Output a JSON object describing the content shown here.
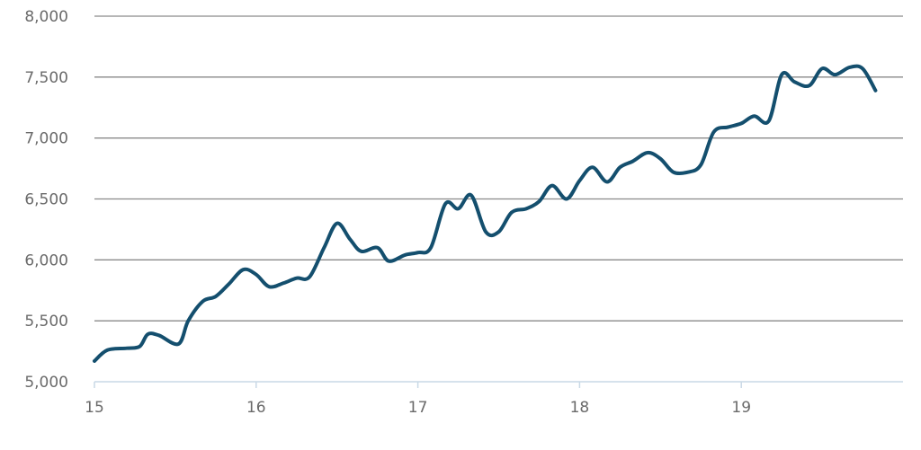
{
  "chart_data": {
    "type": "line",
    "title": "",
    "xlabel": "",
    "ylabel": "",
    "grid": true,
    "legend": "none",
    "colors": {
      "line": "#144f6e",
      "grid": "#8a8a8a",
      "axis": "#c9d9e6",
      "tick_text": "#6a6a6a"
    },
    "xlim": [
      15.0,
      20.0
    ],
    "ylim": [
      5000,
      8000
    ],
    "x_ticks": [
      {
        "value": 15,
        "label": "15"
      },
      {
        "value": 16,
        "label": "16"
      },
      {
        "value": 17,
        "label": "17"
      },
      {
        "value": 18,
        "label": "18"
      },
      {
        "value": 19,
        "label": "19"
      }
    ],
    "y_ticks": [
      {
        "value": 5000,
        "label": "5,000"
      },
      {
        "value": 5500,
        "label": "5,500"
      },
      {
        "value": 6000,
        "label": "6,000"
      },
      {
        "value": 6500,
        "label": "6,500"
      },
      {
        "value": 7000,
        "label": "7,000"
      },
      {
        "value": 7500,
        "label": "7,500"
      },
      {
        "value": 8000,
        "label": "8,000"
      }
    ],
    "series": [
      {
        "values": [
          [
            15.0,
            5170
          ],
          [
            15.08,
            5260
          ],
          [
            15.2,
            5275
          ],
          [
            15.28,
            5290
          ],
          [
            15.33,
            5390
          ],
          [
            15.4,
            5380
          ],
          [
            15.52,
            5310
          ],
          [
            15.58,
            5500
          ],
          [
            15.67,
            5660
          ],
          [
            15.75,
            5700
          ],
          [
            15.83,
            5800
          ],
          [
            15.92,
            5920
          ],
          [
            16.0,
            5880
          ],
          [
            16.08,
            5780
          ],
          [
            16.17,
            5810
          ],
          [
            16.25,
            5850
          ],
          [
            16.33,
            5860
          ],
          [
            16.42,
            6100
          ],
          [
            16.5,
            6300
          ],
          [
            16.58,
            6170
          ],
          [
            16.65,
            6070
          ],
          [
            16.75,
            6100
          ],
          [
            16.82,
            5990
          ],
          [
            16.92,
            6040
          ],
          [
            17.0,
            6060
          ],
          [
            17.08,
            6100
          ],
          [
            17.17,
            6460
          ],
          [
            17.25,
            6420
          ],
          [
            17.33,
            6530
          ],
          [
            17.42,
            6230
          ],
          [
            17.5,
            6230
          ],
          [
            17.58,
            6390
          ],
          [
            17.67,
            6420
          ],
          [
            17.75,
            6480
          ],
          [
            17.83,
            6610
          ],
          [
            17.92,
            6500
          ],
          [
            18.0,
            6650
          ],
          [
            18.08,
            6760
          ],
          [
            18.17,
            6640
          ],
          [
            18.25,
            6760
          ],
          [
            18.33,
            6810
          ],
          [
            18.42,
            6880
          ],
          [
            18.5,
            6830
          ],
          [
            18.58,
            6720
          ],
          [
            18.67,
            6720
          ],
          [
            18.75,
            6780
          ],
          [
            18.83,
            7050
          ],
          [
            18.92,
            7090
          ],
          [
            19.0,
            7120
          ],
          [
            19.08,
            7180
          ],
          [
            19.17,
            7140
          ],
          [
            19.25,
            7520
          ],
          [
            19.33,
            7460
          ],
          [
            19.42,
            7430
          ],
          [
            19.5,
            7570
          ],
          [
            19.58,
            7520
          ],
          [
            19.67,
            7580
          ],
          [
            19.75,
            7570
          ],
          [
            19.83,
            7390
          ]
        ]
      }
    ]
  }
}
